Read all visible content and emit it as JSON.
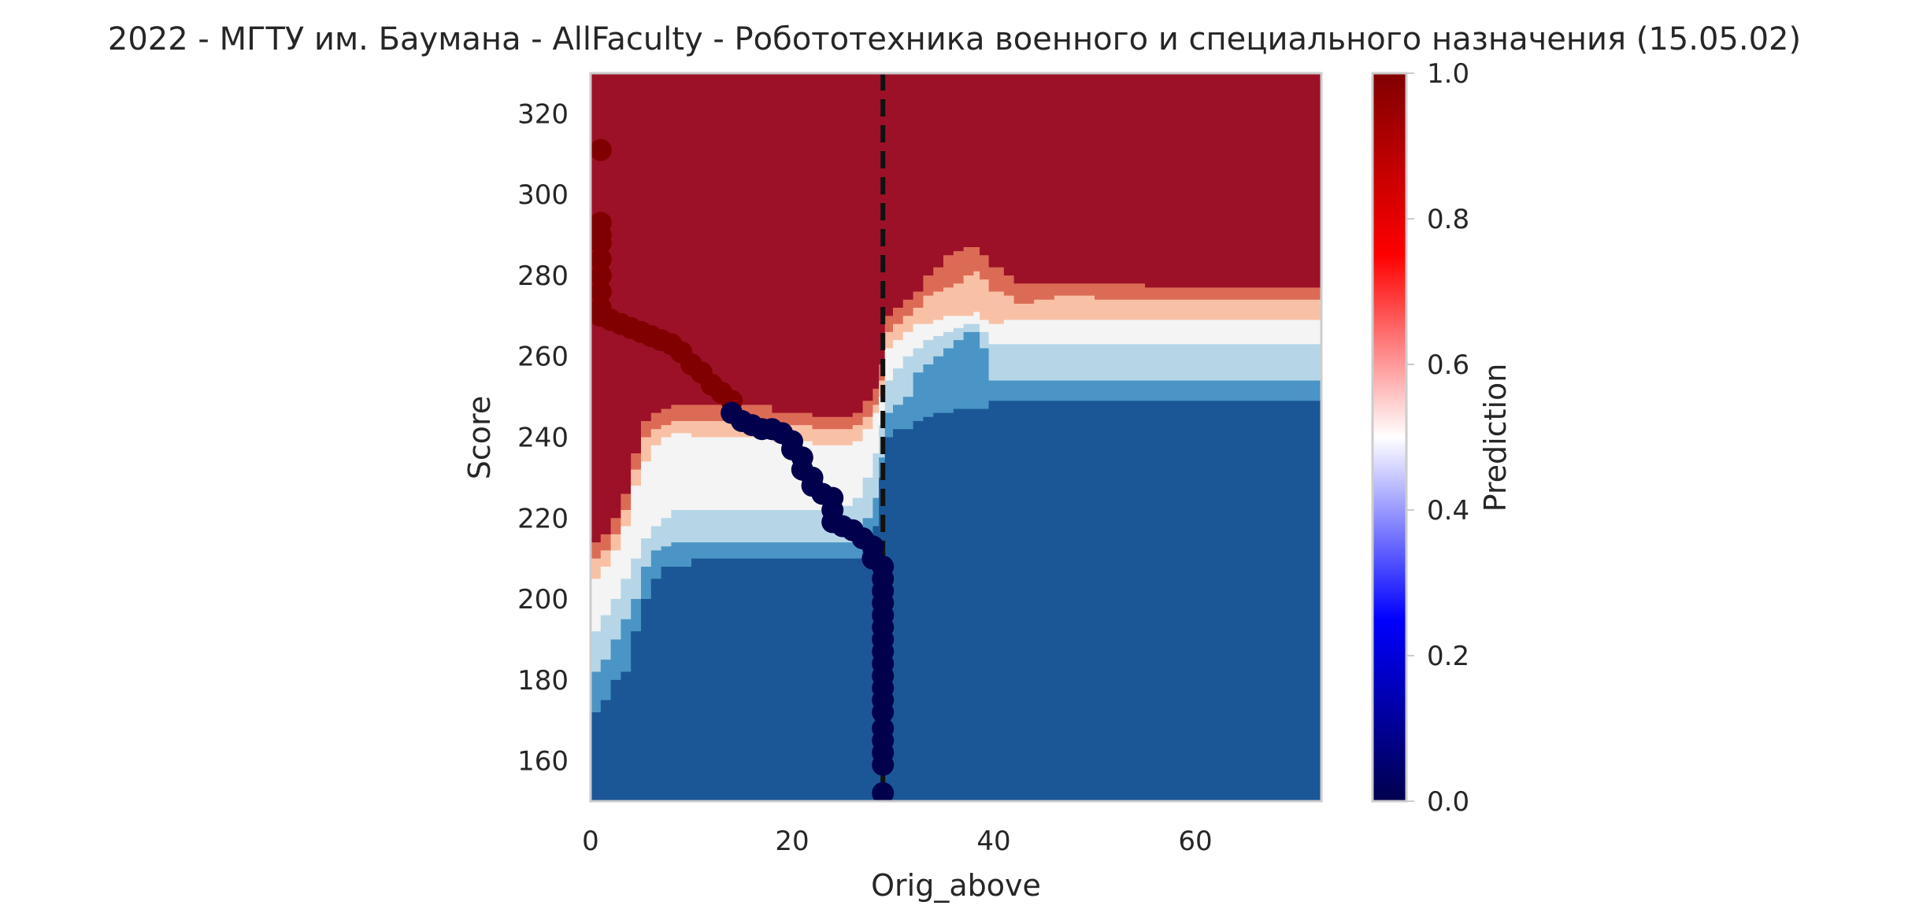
{
  "chart_data": {
    "type": "heatmap",
    "title": "2022 - МГТУ им. Баумана - AllFaculty - Робототехника военного и специального назначения (15.05.02)",
    "xlabel": "Orig_above",
    "ylabel": "Score",
    "xlim": [
      0,
      72.5
    ],
    "ylim": [
      150,
      330
    ],
    "x_ticks": [
      0,
      20,
      40,
      60
    ],
    "y_ticks": [
      160,
      180,
      200,
      220,
      240,
      260,
      280,
      300,
      320
    ],
    "x_tick_labels": [
      "0",
      "20",
      "40",
      "60"
    ],
    "y_tick_labels": [
      "160",
      "180",
      "200",
      "220",
      "240",
      "260",
      "280",
      "300",
      "320"
    ],
    "grid": false,
    "vline": {
      "x": 29,
      "style": "dashed",
      "color": "#111111"
    },
    "colorbar": {
      "label": "Prediction",
      "range": [
        0,
        1
      ],
      "ticks": [
        0.0,
        0.2,
        0.4,
        0.6,
        0.8,
        1.0
      ],
      "tick_labels": [
        "0.0",
        "0.2",
        "0.4",
        "0.6",
        "0.8",
        "1.0"
      ],
      "colormap": "seismic"
    },
    "contour_levels": [
      {
        "upper": 0.1,
        "color": "#1b5796"
      },
      {
        "upper": 0.2,
        "color": "#4a95c6"
      },
      {
        "upper": 0.35,
        "color": "#b6d6e8"
      },
      {
        "upper": 0.5,
        "color": "#f4f4f4"
      },
      {
        "upper": 0.6,
        "color": "#f8c1a6"
      },
      {
        "upper": 0.8,
        "color": "#dc6b56"
      },
      {
        "upper": 1.0,
        "color": "#9c1127"
      }
    ],
    "contour_boundaries": {
      "x": [
        0,
        1,
        2,
        3,
        4,
        5,
        6,
        7,
        8,
        10,
        14,
        18,
        22,
        24,
        26,
        27,
        28,
        28.6,
        29.2,
        30,
        31,
        32,
        33,
        34,
        35,
        36,
        37,
        38,
        38.6,
        39.5,
        41,
        42,
        44,
        46,
        50,
        55,
        60,
        65,
        72.5
      ],
      "lines": [
        [
          172,
          175,
          180,
          182,
          192,
          200,
          205,
          208,
          208,
          210,
          210,
          210,
          210,
          210,
          210,
          212,
          218,
          230,
          240,
          242,
          242,
          244,
          245,
          246,
          246,
          247,
          247,
          247,
          247,
          249,
          249,
          249,
          249,
          249,
          249,
          249,
          249,
          249,
          249
        ],
        [
          182,
          185,
          190,
          195,
          200,
          208,
          212,
          213,
          214,
          214,
          214,
          214,
          214,
          214,
          216,
          220,
          225,
          235,
          246,
          248,
          250,
          256,
          258,
          260,
          262,
          264,
          266,
          266,
          262,
          254,
          254,
          254,
          254,
          254,
          254,
          254,
          254,
          254,
          254
        ],
        [
          192,
          196,
          200,
          205,
          210,
          215,
          218,
          220,
          222,
          222,
          222,
          222,
          222,
          223,
          225,
          230,
          236,
          243,
          254,
          257,
          260,
          262,
          264,
          265,
          266,
          267,
          268,
          268,
          266,
          263,
          263,
          263,
          263,
          263,
          263,
          263,
          263,
          263,
          263
        ],
        [
          205,
          208,
          212,
          218,
          228,
          234,
          238,
          240,
          241,
          240,
          240,
          239,
          238,
          238,
          239,
          242,
          246,
          250,
          262,
          264,
          266,
          268,
          268,
          269,
          270,
          270,
          270,
          271,
          269,
          268,
          269,
          269,
          269,
          269,
          269,
          269,
          269,
          269,
          269
        ],
        [
          210,
          212,
          216,
          222,
          232,
          240,
          242,
          243,
          244,
          244,
          244,
          243,
          242,
          242,
          243,
          245,
          248,
          254,
          266,
          268,
          270,
          272,
          275,
          276,
          277,
          278,
          280,
          281,
          279,
          276,
          275,
          273,
          274,
          275,
          274,
          274,
          274,
          274,
          274
        ],
        [
          214,
          216,
          220,
          226,
          236,
          244,
          246,
          247,
          248,
          248,
          248,
          246,
          245,
          245,
          246,
          249,
          252,
          258,
          270,
          272,
          274,
          276,
          280,
          282,
          285,
          286,
          287,
          287,
          285,
          282,
          280,
          278,
          278,
          278,
          278,
          277,
          277,
          277,
          277
        ],
        [
          220,
          222,
          225,
          230,
          240,
          246,
          248,
          249,
          250,
          250,
          250,
          249,
          248,
          248,
          250,
          255,
          262,
          268,
          274,
          278,
          283,
          288,
          292,
          294,
          295,
          296,
          297,
          296,
          293,
          290,
          289,
          289,
          289,
          289,
          289,
          289,
          289,
          289,
          289
        ]
      ]
    },
    "threshold_points": {
      "class_1": [
        [
          1,
          311
        ],
        [
          1,
          293
        ],
        [
          1,
          290
        ],
        [
          1,
          288
        ],
        [
          1,
          284
        ],
        [
          1,
          280
        ],
        [
          1,
          276
        ],
        [
          1,
          272
        ],
        [
          1,
          270
        ],
        [
          2,
          269
        ],
        [
          3,
          268
        ],
        [
          4,
          267
        ],
        [
          5,
          266
        ],
        [
          6,
          265
        ],
        [
          7,
          264
        ],
        [
          8,
          263
        ],
        [
          9,
          261
        ],
        [
          10,
          258
        ],
        [
          11,
          256
        ],
        [
          12,
          253
        ],
        [
          13,
          251
        ],
        [
          14,
          249
        ]
      ],
      "class_0": [
        [
          14,
          246
        ],
        [
          15,
          244
        ],
        [
          16,
          243
        ],
        [
          17,
          242
        ],
        [
          18,
          242
        ],
        [
          19,
          241
        ],
        [
          20,
          239
        ],
        [
          20,
          237
        ],
        [
          21,
          235
        ],
        [
          21,
          232
        ],
        [
          22,
          230
        ],
        [
          22,
          228
        ],
        [
          23,
          226
        ],
        [
          24,
          225
        ],
        [
          24,
          222
        ],
        [
          24,
          219
        ],
        [
          25,
          218
        ],
        [
          26,
          217
        ],
        [
          27,
          215
        ],
        [
          28,
          213
        ],
        [
          28,
          210
        ],
        [
          29,
          208
        ],
        [
          29,
          205
        ],
        [
          29,
          202
        ],
        [
          29,
          199
        ],
        [
          29,
          196
        ],
        [
          29,
          193
        ],
        [
          29,
          190
        ],
        [
          29,
          187
        ],
        [
          29,
          184
        ],
        [
          29,
          181
        ],
        [
          29,
          178
        ],
        [
          29,
          175
        ],
        [
          29,
          172
        ],
        [
          29,
          168
        ],
        [
          29,
          165
        ],
        [
          29,
          162
        ],
        [
          29,
          159
        ],
        [
          29,
          152
        ]
      ]
    },
    "point_colors": {
      "class_1": "#800000",
      "class_0": "#00004c"
    }
  }
}
